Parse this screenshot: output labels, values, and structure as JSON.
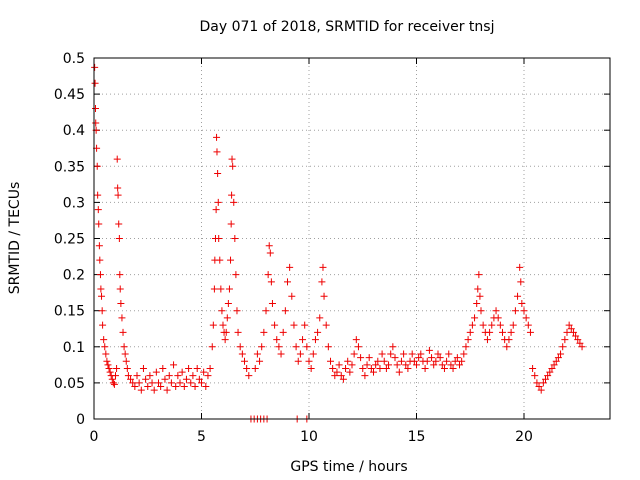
{
  "chart_data": {
    "type": "scatter",
    "title": "Day 071 of 2018, SRMTID for receiver tnsj",
    "xlabel": "GPS time / hours",
    "ylabel": "SRMTID / TECUs",
    "xlim": [
      0,
      24
    ],
    "ylim": [
      0,
      0.5
    ],
    "grid": true,
    "marker": "+",
    "marker_color": "#ee0000",
    "x_ticks": [
      "0",
      "5",
      "10",
      "15",
      "20"
    ],
    "x_tick_values": [
      0,
      5,
      10,
      15,
      20
    ],
    "y_ticks": [
      "0",
      "0.05",
      "0.1",
      "0.15",
      "0.2",
      "0.25",
      "0.3",
      "0.35",
      "0.4",
      "0.45",
      "0.5"
    ],
    "y_tick_values": [
      0,
      0.05,
      0.1,
      0.15,
      0.2,
      0.25,
      0.3,
      0.35,
      0.4,
      0.45,
      0.5
    ],
    "series": [
      {
        "name": "SRMTID",
        "points": [
          [
            0.03,
            0.487
          ],
          [
            0.05,
            0.465
          ],
          [
            0.07,
            0.43
          ],
          [
            0.08,
            0.41
          ],
          [
            0.1,
            0.4
          ],
          [
            0.12,
            0.375
          ],
          [
            0.15,
            0.35
          ],
          [
            0.17,
            0.31
          ],
          [
            0.2,
            0.29
          ],
          [
            0.22,
            0.27
          ],
          [
            0.25,
            0.24
          ],
          [
            0.27,
            0.22
          ],
          [
            0.3,
            0.2
          ],
          [
            0.32,
            0.18
          ],
          [
            0.35,
            0.17
          ],
          [
            0.38,
            0.15
          ],
          [
            0.4,
            0.13
          ],
          [
            0.45,
            0.11
          ],
          [
            0.5,
            0.1
          ],
          [
            0.55,
            0.09
          ],
          [
            0.6,
            0.08
          ],
          [
            0.65,
            0.075
          ],
          [
            0.7,
            0.07
          ],
          [
            0.75,
            0.065
          ],
          [
            0.8,
            0.06
          ],
          [
            0.85,
            0.055
          ],
          [
            0.9,
            0.05
          ],
          [
            0.95,
            0.048
          ],
          [
            1.0,
            0.06
          ],
          [
            1.05,
            0.07
          ],
          [
            1.08,
            0.36
          ],
          [
            1.1,
            0.32
          ],
          [
            1.12,
            0.31
          ],
          [
            1.15,
            0.27
          ],
          [
            1.18,
            0.25
          ],
          [
            1.2,
            0.2
          ],
          [
            1.22,
            0.18
          ],
          [
            1.25,
            0.16
          ],
          [
            1.3,
            0.14
          ],
          [
            1.35,
            0.12
          ],
          [
            1.4,
            0.1
          ],
          [
            1.45,
            0.09
          ],
          [
            1.5,
            0.08
          ],
          [
            1.55,
            0.07
          ],
          [
            1.6,
            0.06
          ],
          [
            1.7,
            0.055
          ],
          [
            1.8,
            0.05
          ],
          [
            1.9,
            0.045
          ],
          [
            2.0,
            0.06
          ],
          [
            2.1,
            0.05
          ],
          [
            2.2,
            0.04
          ],
          [
            2.3,
            0.07
          ],
          [
            2.4,
            0.055
          ],
          [
            2.5,
            0.045
          ],
          [
            2.6,
            0.06
          ],
          [
            2.7,
            0.05
          ],
          [
            2.8,
            0.04
          ],
          [
            2.9,
            0.065
          ],
          [
            3.0,
            0.05
          ],
          [
            3.1,
            0.045
          ],
          [
            3.2,
            0.07
          ],
          [
            3.3,
            0.055
          ],
          [
            3.4,
            0.04
          ],
          [
            3.5,
            0.06
          ],
          [
            3.6,
            0.05
          ],
          [
            3.7,
            0.075
          ],
          [
            3.8,
            0.045
          ],
          [
            3.9,
            0.06
          ],
          [
            4.0,
            0.05
          ],
          [
            4.1,
            0.065
          ],
          [
            4.2,
            0.045
          ],
          [
            4.3,
            0.055
          ],
          [
            4.4,
            0.07
          ],
          [
            4.5,
            0.05
          ],
          [
            4.6,
            0.06
          ],
          [
            4.7,
            0.045
          ],
          [
            4.8,
            0.07
          ],
          [
            4.9,
            0.055
          ],
          [
            5.0,
            0.05
          ],
          [
            5.1,
            0.065
          ],
          [
            5.2,
            0.045
          ],
          [
            5.3,
            0.06
          ],
          [
            5.4,
            0.07
          ],
          [
            5.5,
            0.1
          ],
          [
            5.55,
            0.13
          ],
          [
            5.6,
            0.18
          ],
          [
            5.62,
            0.22
          ],
          [
            5.65,
            0.25
          ],
          [
            5.68,
            0.29
          ],
          [
            5.7,
            0.39
          ],
          [
            5.72,
            0.37
          ],
          [
            5.75,
            0.34
          ],
          [
            5.78,
            0.3
          ],
          [
            5.8,
            0.25
          ],
          [
            5.85,
            0.22
          ],
          [
            5.9,
            0.18
          ],
          [
            5.95,
            0.15
          ],
          [
            6.0,
            0.13
          ],
          [
            6.05,
            0.12
          ],
          [
            6.1,
            0.11
          ],
          [
            6.15,
            0.12
          ],
          [
            6.2,
            0.14
          ],
          [
            6.25,
            0.16
          ],
          [
            6.3,
            0.18
          ],
          [
            6.35,
            0.22
          ],
          [
            6.38,
            0.27
          ],
          [
            6.4,
            0.31
          ],
          [
            6.42,
            0.36
          ],
          [
            6.45,
            0.35
          ],
          [
            6.5,
            0.3
          ],
          [
            6.55,
            0.25
          ],
          [
            6.6,
            0.2
          ],
          [
            6.65,
            0.15
          ],
          [
            6.7,
            0.12
          ],
          [
            6.8,
            0.1
          ],
          [
            6.9,
            0.09
          ],
          [
            7.0,
            0.08
          ],
          [
            7.1,
            0.07
          ],
          [
            7.2,
            0.06
          ],
          [
            7.3,
            0.0
          ],
          [
            7.45,
            0.0
          ],
          [
            7.6,
            0.0
          ],
          [
            7.75,
            0.0
          ],
          [
            7.9,
            0.0
          ],
          [
            8.05,
            0.0
          ],
          [
            9.45,
            0.0
          ],
          [
            9.9,
            0.0
          ],
          [
            7.5,
            0.07
          ],
          [
            7.6,
            0.09
          ],
          [
            7.7,
            0.08
          ],
          [
            7.8,
            0.1
          ],
          [
            7.9,
            0.12
          ],
          [
            8.0,
            0.15
          ],
          [
            8.1,
            0.2
          ],
          [
            8.15,
            0.24
          ],
          [
            8.2,
            0.23
          ],
          [
            8.25,
            0.19
          ],
          [
            8.3,
            0.16
          ],
          [
            8.4,
            0.13
          ],
          [
            8.5,
            0.11
          ],
          [
            8.6,
            0.1
          ],
          [
            8.7,
            0.09
          ],
          [
            8.8,
            0.12
          ],
          [
            8.9,
            0.15
          ],
          [
            9.0,
            0.19
          ],
          [
            9.1,
            0.21
          ],
          [
            9.2,
            0.17
          ],
          [
            9.3,
            0.13
          ],
          [
            9.4,
            0.1
          ],
          [
            9.5,
            0.08
          ],
          [
            9.6,
            0.09
          ],
          [
            9.7,
            0.11
          ],
          [
            9.8,
            0.13
          ],
          [
            9.9,
            0.1
          ],
          [
            10.0,
            0.08
          ],
          [
            10.1,
            0.07
          ],
          [
            10.2,
            0.09
          ],
          [
            10.3,
            0.11
          ],
          [
            10.4,
            0.12
          ],
          [
            10.5,
            0.14
          ],
          [
            10.6,
            0.19
          ],
          [
            10.65,
            0.21
          ],
          [
            10.7,
            0.17
          ],
          [
            10.8,
            0.13
          ],
          [
            10.9,
            0.1
          ],
          [
            11.0,
            0.08
          ],
          [
            11.1,
            0.07
          ],
          [
            11.2,
            0.06
          ],
          [
            11.3,
            0.065
          ],
          [
            11.4,
            0.075
          ],
          [
            11.5,
            0.06
          ],
          [
            11.6,
            0.055
          ],
          [
            11.7,
            0.07
          ],
          [
            11.8,
            0.08
          ],
          [
            11.9,
            0.065
          ],
          [
            12.0,
            0.075
          ],
          [
            12.1,
            0.09
          ],
          [
            12.2,
            0.11
          ],
          [
            12.3,
            0.1
          ],
          [
            12.4,
            0.085
          ],
          [
            12.5,
            0.07
          ],
          [
            12.6,
            0.06
          ],
          [
            12.7,
            0.075
          ],
          [
            12.8,
            0.085
          ],
          [
            12.9,
            0.07
          ],
          [
            13.0,
            0.065
          ],
          [
            13.1,
            0.075
          ],
          [
            13.2,
            0.08
          ],
          [
            13.3,
            0.07
          ],
          [
            13.4,
            0.09
          ],
          [
            13.5,
            0.08
          ],
          [
            13.6,
            0.07
          ],
          [
            13.7,
            0.075
          ],
          [
            13.8,
            0.09
          ],
          [
            13.9,
            0.1
          ],
          [
            14.0,
            0.085
          ],
          [
            14.1,
            0.075
          ],
          [
            14.2,
            0.065
          ],
          [
            14.3,
            0.08
          ],
          [
            14.4,
            0.09
          ],
          [
            14.5,
            0.075
          ],
          [
            14.6,
            0.07
          ],
          [
            14.7,
            0.08
          ],
          [
            14.8,
            0.09
          ],
          [
            14.9,
            0.08
          ],
          [
            15.0,
            0.075
          ],
          [
            15.1,
            0.085
          ],
          [
            15.2,
            0.09
          ],
          [
            15.3,
            0.08
          ],
          [
            15.4,
            0.07
          ],
          [
            15.5,
            0.08
          ],
          [
            15.6,
            0.095
          ],
          [
            15.7,
            0.085
          ],
          [
            15.8,
            0.075
          ],
          [
            15.9,
            0.08
          ],
          [
            16.0,
            0.09
          ],
          [
            16.1,
            0.085
          ],
          [
            16.2,
            0.075
          ],
          [
            16.3,
            0.07
          ],
          [
            16.4,
            0.08
          ],
          [
            16.5,
            0.09
          ],
          [
            16.6,
            0.075
          ],
          [
            16.7,
            0.07
          ],
          [
            16.8,
            0.08
          ],
          [
            16.9,
            0.085
          ],
          [
            17.0,
            0.075
          ],
          [
            17.1,
            0.08
          ],
          [
            17.2,
            0.09
          ],
          [
            17.3,
            0.1
          ],
          [
            17.4,
            0.11
          ],
          [
            17.5,
            0.12
          ],
          [
            17.6,
            0.13
          ],
          [
            17.7,
            0.14
          ],
          [
            17.8,
            0.16
          ],
          [
            17.85,
            0.18
          ],
          [
            17.9,
            0.2
          ],
          [
            17.95,
            0.17
          ],
          [
            18.0,
            0.15
          ],
          [
            18.1,
            0.13
          ],
          [
            18.2,
            0.12
          ],
          [
            18.3,
            0.11
          ],
          [
            18.4,
            0.12
          ],
          [
            18.5,
            0.13
          ],
          [
            18.6,
            0.14
          ],
          [
            18.7,
            0.15
          ],
          [
            18.8,
            0.14
          ],
          [
            18.9,
            0.13
          ],
          [
            19.0,
            0.12
          ],
          [
            19.1,
            0.11
          ],
          [
            19.2,
            0.1
          ],
          [
            19.3,
            0.11
          ],
          [
            19.4,
            0.12
          ],
          [
            19.5,
            0.13
          ],
          [
            19.6,
            0.15
          ],
          [
            19.7,
            0.17
          ],
          [
            19.8,
            0.21
          ],
          [
            19.85,
            0.19
          ],
          [
            19.9,
            0.16
          ],
          [
            20.0,
            0.15
          ],
          [
            20.1,
            0.14
          ],
          [
            20.2,
            0.13
          ],
          [
            20.3,
            0.12
          ],
          [
            20.4,
            0.07
          ],
          [
            20.5,
            0.06
          ],
          [
            20.6,
            0.05
          ],
          [
            20.7,
            0.045
          ],
          [
            20.8,
            0.04
          ],
          [
            20.9,
            0.05
          ],
          [
            21.0,
            0.055
          ],
          [
            21.1,
            0.06
          ],
          [
            21.2,
            0.065
          ],
          [
            21.3,
            0.07
          ],
          [
            21.4,
            0.075
          ],
          [
            21.5,
            0.08
          ],
          [
            21.6,
            0.085
          ],
          [
            21.7,
            0.09
          ],
          [
            21.8,
            0.1
          ],
          [
            21.9,
            0.11
          ],
          [
            22.0,
            0.12
          ],
          [
            22.1,
            0.13
          ],
          [
            22.2,
            0.125
          ],
          [
            22.3,
            0.12
          ],
          [
            22.4,
            0.115
          ],
          [
            22.5,
            0.11
          ],
          [
            22.6,
            0.105
          ],
          [
            22.7,
            0.1
          ]
        ]
      }
    ]
  }
}
